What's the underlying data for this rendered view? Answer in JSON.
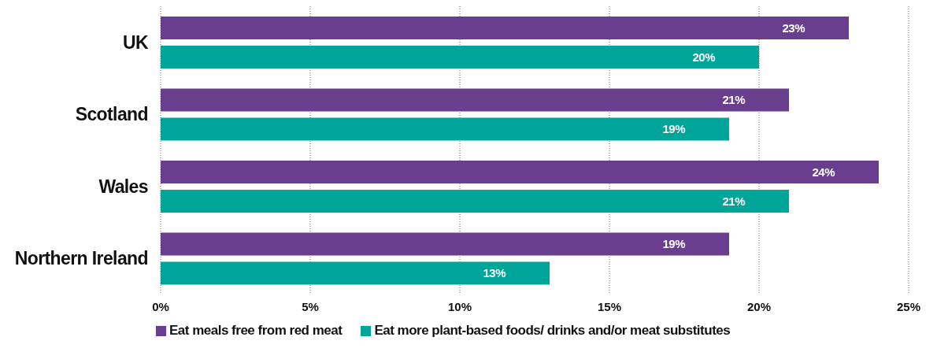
{
  "chart_data": {
    "type": "bar",
    "orientation": "horizontal",
    "categories": [
      "UK",
      "Scotland",
      "Wales",
      "Northern Ireland"
    ],
    "series": [
      {
        "name": "Eat meals free from red meat",
        "color": "#693e8e",
        "values": [
          23,
          21,
          24,
          19
        ],
        "value_labels": [
          "23%",
          "21%",
          "24%",
          "19%"
        ]
      },
      {
        "name": "Eat more plant-based foods/ drinks and/or meat substitutes",
        "color": "#00a59a",
        "values": [
          20,
          19,
          21,
          13
        ],
        "value_labels": [
          "20%",
          "19%",
          "21%",
          "13%"
        ]
      }
    ],
    "xlim": [
      0,
      25
    ],
    "xticks": [
      {
        "value": 0,
        "label": "0%"
      },
      {
        "value": 5,
        "label": "5%"
      },
      {
        "value": 10,
        "label": "10%"
      },
      {
        "value": 15,
        "label": "15%"
      },
      {
        "value": 20,
        "label": "20%"
      },
      {
        "value": 25,
        "label": "25%"
      }
    ],
    "grid": "x",
    "legend": "bottom left"
  }
}
